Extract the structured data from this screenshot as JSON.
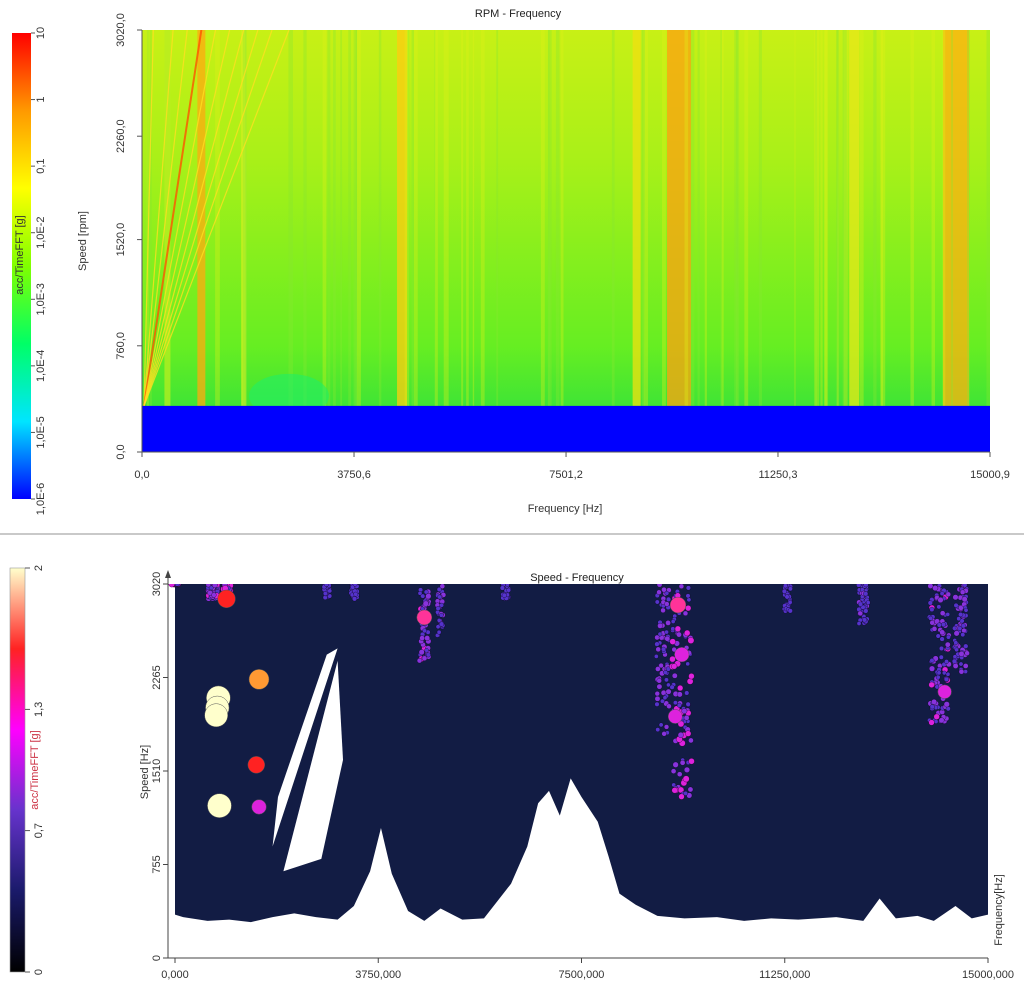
{
  "chart_data": [
    {
      "type": "heatmap",
      "title": "RPM - Frequency",
      "xlabel": "Frequency [Hz]",
      "ylabel": "Speed [rpm]",
      "xlim": [
        0,
        15000.9
      ],
      "ylim": [
        0,
        3020
      ],
      "x_ticks": [
        "0,0",
        "3750,6",
        "7501,2",
        "11250,3",
        "15000,9"
      ],
      "x_tick_values": [
        0,
        3750.6,
        7501.2,
        11250.3,
        15000.9
      ],
      "y_ticks": [
        "0,0",
        "760,0",
        "1520,0",
        "2260,0",
        "3020,0"
      ],
      "y_tick_values": [
        0,
        760,
        1520,
        2260,
        3020
      ],
      "colorbar": {
        "label": "acc/TimeFFT [g]",
        "scale": "log",
        "ticks": [
          "1,0E-6",
          "1,0E-5",
          "1,0E-4",
          "1,0E-3",
          "1,0E-2",
          "0,1",
          "1",
          "10"
        ],
        "colors": [
          "#0000ff",
          "#00e5ff",
          "#00ff66",
          "#80ff00",
          "#ffff00",
          "#ff9900",
          "#ff0000"
        ]
      },
      "no_data_below_speed": 330,
      "resonance_bands_hz": [
        450,
        1050,
        1800,
        4600,
        8750,
        9500,
        12600,
        14400
      ],
      "order_lines_hz_at_max_rpm": [
        200,
        550,
        800,
        1050,
        1300,
        1550,
        1800,
        2050,
        2300,
        2600
      ]
    },
    {
      "type": "scatter",
      "title": "Speed - Frequency",
      "xlabel": "Frequency[Hz]",
      "ylabel": "Speed [Hz]",
      "xlim": [
        0,
        15000
      ],
      "ylim": [
        0,
        3020
      ],
      "x_ticks": [
        "0,000",
        "3750,000",
        "7500,000",
        "11250,000",
        "15000,000"
      ],
      "x_tick_values": [
        0,
        3750,
        7500,
        11250,
        15000
      ],
      "y_ticks": [
        "0",
        "755",
        "1510",
        "2265",
        "3020"
      ],
      "y_tick_values": [
        0,
        755,
        1510,
        2265,
        3020
      ],
      "colorbar": {
        "label": "acc/TimeFFT [g]",
        "ticks": [
          "0",
          "0,7",
          "1,3",
          "2"
        ],
        "tick_values": [
          0,
          0.7,
          1.3,
          2
        ],
        "colors": [
          "#000000",
          "#1a1a6a",
          "#6633cc",
          "#ff00ff",
          "#ff2222",
          "#ffffcc"
        ]
      },
      "highlight_points": [
        {
          "x": 800,
          "y": 2100,
          "v": 2.0
        },
        {
          "x": 780,
          "y": 2020,
          "v": 1.95
        },
        {
          "x": 760,
          "y": 1960,
          "v": 1.9
        },
        {
          "x": 820,
          "y": 1230,
          "v": 2.0
        },
        {
          "x": 1550,
          "y": 2250,
          "v": 1.55
        },
        {
          "x": 1500,
          "y": 1560,
          "v": 1.2
        },
        {
          "x": 1550,
          "y": 1220,
          "v": 0.95
        },
        {
          "x": 950,
          "y": 2900,
          "v": 1.3
        },
        {
          "x": 9280,
          "y": 2850,
          "v": 1.1
        },
        {
          "x": 9350,
          "y": 2450,
          "v": 0.95
        },
        {
          "x": 9230,
          "y": 1950,
          "v": 0.9
        },
        {
          "x": 14200,
          "y": 2150,
          "v": 0.85
        },
        {
          "x": 4600,
          "y": 2750,
          "v": 1.0
        }
      ]
    }
  ]
}
